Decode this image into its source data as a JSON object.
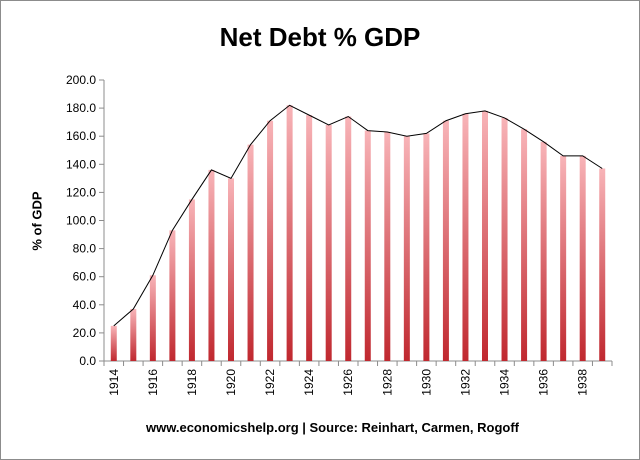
{
  "colors": {
    "bar_dark": "#c0282f",
    "bar_light": "#f8b4b8",
    "line": "#000000",
    "axis": "#8c8c8c"
  },
  "chart_data": {
    "type": "bar",
    "title": "Net Debt % GDP",
    "ylabel": "% of GDP",
    "xlabel": "",
    "source": "www.economicshelp.org | Source: Reinhart, Carmen, Rogoff",
    "ylim": [
      0,
      200
    ],
    "y_ticks": [
      "0.0",
      "20.0",
      "40.0",
      "60.0",
      "80.0",
      "100.0",
      "120.0",
      "140.0",
      "160.0",
      "180.0",
      "200.0"
    ],
    "grid": false,
    "legend": "none",
    "overlay": "line connecting bar tops",
    "x_tick_labels": [
      "1914",
      "1916",
      "1918",
      "1920",
      "1922",
      "1924",
      "1926",
      "1928",
      "1930",
      "1932",
      "1934",
      "1936",
      "1938"
    ],
    "categories": [
      "1914",
      "1915",
      "1916",
      "1917",
      "1918",
      "1919",
      "1920",
      "1921",
      "1922",
      "1923",
      "1924",
      "1925",
      "1926",
      "1927",
      "1928",
      "1929",
      "1930",
      "1931",
      "1932",
      "1933",
      "1934",
      "1935",
      "1936",
      "1937",
      "1938",
      "1939"
    ],
    "values": [
      25,
      37,
      61,
      93,
      115,
      136,
      130,
      154,
      171,
      182,
      175,
      168,
      174,
      164,
      163,
      160,
      162,
      171,
      176,
      178,
      173,
      165,
      156,
      146,
      146,
      137
    ]
  }
}
